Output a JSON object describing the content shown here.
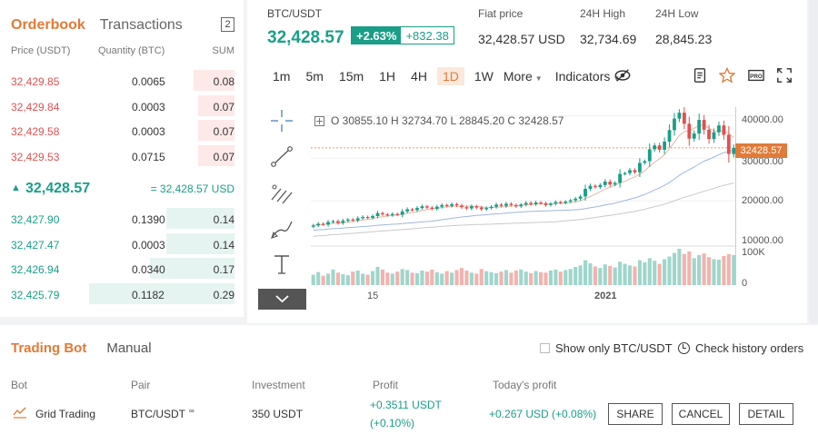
{
  "orderbook": {
    "tabs": [
      "Orderbook",
      "Transactions"
    ],
    "count": "2",
    "headers": {
      "price": "Price (USDT)",
      "quantity": "Quantity (BTC)",
      "sum": "SUM"
    },
    "asks": [
      {
        "price": "32,429.85",
        "qty": "0.0065",
        "sum": "0.08",
        "depth": 0.28
      },
      {
        "price": "32,429.84",
        "qty": "0.0003",
        "sum": "0.07",
        "depth": 0.25
      },
      {
        "price": "32,429.58",
        "qty": "0.0003",
        "sum": "0.07",
        "depth": 0.25
      },
      {
        "price": "32,429.53",
        "qty": "0.0715",
        "sum": "0.07",
        "depth": 0.25
      }
    ],
    "last_price": "32,428.57",
    "last_fiat": "= 32,428.57 USD",
    "bids": [
      {
        "price": "32,427.90",
        "qty": "0.1390",
        "sum": "0.14",
        "depth": 0.47
      },
      {
        "price": "32,427.47",
        "qty": "0.0003",
        "sum": "0.14",
        "depth": 0.47
      },
      {
        "price": "32,426.94",
        "qty": "0.0340",
        "sum": "0.17",
        "depth": 0.58
      },
      {
        "price": "32,425.79",
        "qty": "0.1182",
        "sum": "0.29",
        "depth": 1.0
      }
    ]
  },
  "ticker": {
    "pair": "BTC/USDT",
    "price": "32,428.57",
    "change_pct": "+2.63%",
    "change_abs": "+832.38",
    "fiat_label": "Fiat price",
    "fiat_value": "32,428.57 USD",
    "high_label": "24H High",
    "high_value": "32,734.69",
    "low_label": "24H Low",
    "low_value": "28,845.23"
  },
  "toolbar": {
    "timeframes": [
      "1m",
      "5m",
      "15m",
      "1H",
      "4H",
      "1D",
      "1W"
    ],
    "active_timeframe": "1D",
    "more": "More",
    "indicators": "Indicators",
    "pro_label": "PRO"
  },
  "chart": {
    "ohlc": "O 30855.10  H 32734.70  L 28845.20  C 32428.57",
    "y_ticks": [
      "40000.00",
      "30000.00",
      "20000.00",
      "10000.00"
    ],
    "volume_label": "100K",
    "volume_zero": "0",
    "last_tag": "32428.57",
    "x_ticks": [
      "15",
      "2021"
    ]
  },
  "chart_data": {
    "type": "candlestick",
    "ylim": [
      10000,
      42000
    ],
    "last_price": 32428.57,
    "closes": [
      14200,
      14600,
      14400,
      15000,
      15200,
      14800,
      15300,
      15600,
      15400,
      15900,
      16200,
      16000,
      16400,
      17100,
      16800,
      16600,
      16900,
      16700,
      17500,
      18000,
      17800,
      18300,
      18700,
      18400,
      18100,
      18600,
      19000,
      18800,
      19200,
      18900,
      18500,
      18200,
      18700,
      18400,
      18000,
      18300,
      18600,
      19100,
      18800,
      19300,
      19000,
      18700,
      19100,
      19500,
      19200,
      19600,
      19400,
      19000,
      19300,
      19700,
      19500,
      19800,
      20100,
      20500,
      21000,
      22800,
      23500,
      23200,
      23700,
      24500,
      23800,
      24200,
      26300,
      26500,
      27200,
      26700,
      28900,
      29300,
      32100,
      33000,
      32000,
      33900,
      36600,
      39300,
      40700,
      38100,
      34600,
      35800,
      39000,
      36700,
      34500,
      36100,
      37700,
      35500,
      31000,
      32400
    ],
    "volumes": [
      20,
      25,
      18,
      22,
      30,
      24,
      21,
      19,
      26,
      28,
      22,
      20,
      27,
      35,
      30,
      24,
      22,
      26,
      31,
      29,
      24,
      23,
      28,
      26,
      30,
      25,
      22,
      27,
      24,
      29,
      33,
      28,
      24,
      22,
      31,
      27,
      25,
      23,
      26,
      29,
      24,
      28,
      30,
      26,
      23,
      27,
      25,
      24,
      28,
      30,
      26,
      29,
      31,
      35,
      38,
      48,
      42,
      36,
      33,
      40,
      37,
      34,
      45,
      41,
      38,
      36,
      48,
      44,
      52,
      47,
      41,
      50,
      55,
      62,
      70,
      60,
      65,
      52,
      58,
      61,
      54,
      50,
      49,
      56,
      60,
      58
    ]
  },
  "bot": {
    "tabs": [
      "Trading Bot",
      "Manual"
    ],
    "show_only": "Show only BTC/USDT",
    "check_history": "Check history orders",
    "headers": [
      "Bot",
      "Pair",
      "Investment",
      "Profit",
      "Today's profit"
    ],
    "row": {
      "bot": "Grid Trading",
      "pair": "BTC/USDT",
      "investment": "350 USDT",
      "profit_line1": "+0.3511 USDT",
      "profit_line2": "(+0.10%)",
      "today_profit": "+0.267 USD (+0.08%)"
    },
    "buttons": [
      "SHARE",
      "CANCEL",
      "DETAIL"
    ]
  },
  "colors": {
    "accent": "#e07b39",
    "up": "#1a9e87",
    "down": "#e05050"
  }
}
